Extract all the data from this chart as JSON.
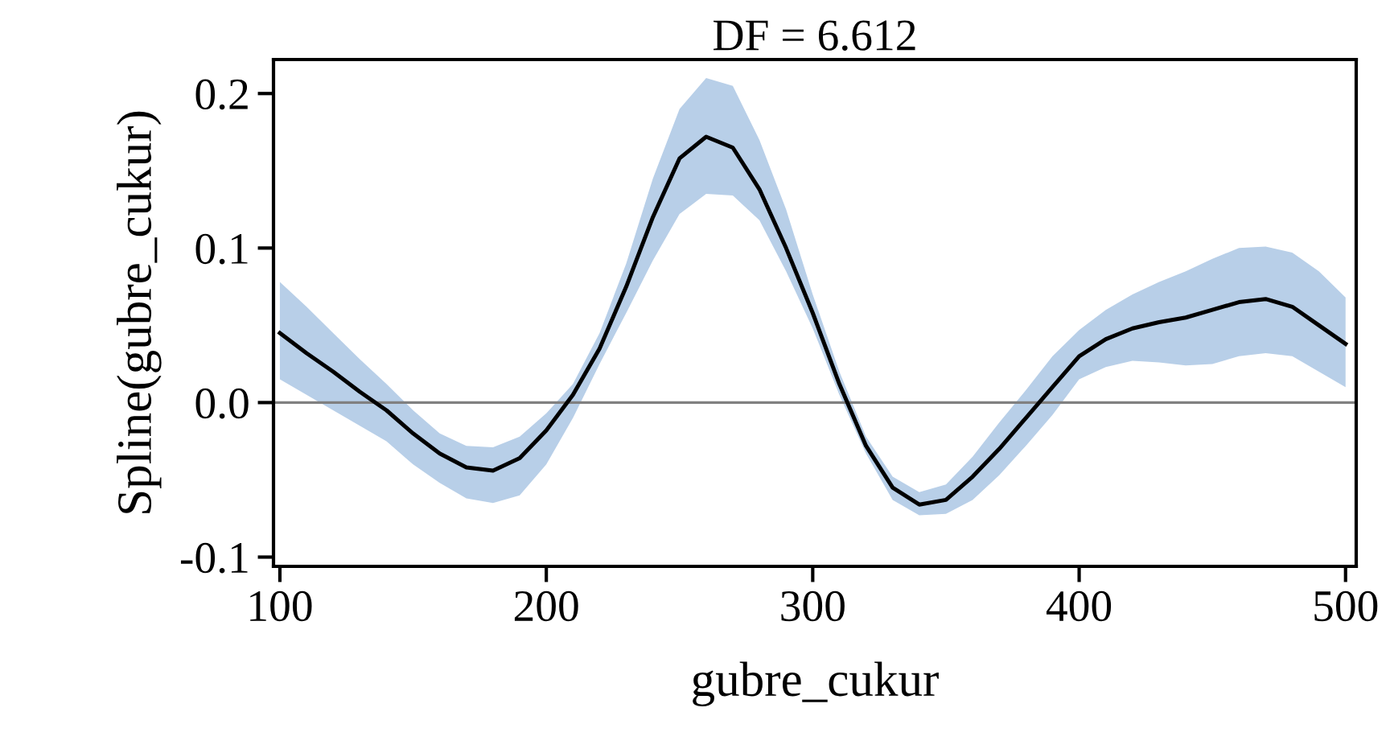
{
  "chart_data": {
    "type": "line",
    "title": "DF = 6.612",
    "xlabel": "gubre_cukur",
    "ylabel": "Spline(gubre_cukur)",
    "x": [
      100,
      110,
      120,
      130,
      140,
      150,
      160,
      170,
      180,
      190,
      200,
      210,
      220,
      230,
      240,
      250,
      260,
      270,
      280,
      290,
      300,
      310,
      320,
      330,
      340,
      350,
      360,
      370,
      380,
      390,
      400,
      410,
      420,
      430,
      440,
      450,
      460,
      470,
      480,
      490,
      500
    ],
    "series": [
      {
        "color": "#000000",
        "values": [
          0.045,
          0.032,
          0.02,
          0.007,
          -0.005,
          -0.02,
          -0.033,
          -0.042,
          -0.044,
          -0.036,
          -0.018,
          0.005,
          0.035,
          0.075,
          0.12,
          0.158,
          0.172,
          0.165,
          0.138,
          0.1,
          0.058,
          0.012,
          -0.028,
          -0.055,
          -0.066,
          -0.063,
          -0.048,
          -0.03,
          -0.01,
          0.01,
          0.03,
          0.041,
          0.048,
          0.052,
          0.055,
          0.06,
          0.065,
          0.067,
          0.062,
          0.05,
          0.038
        ],
        "lower": [
          0.015,
          0.005,
          -0.005,
          -0.015,
          -0.025,
          -0.04,
          -0.052,
          -0.062,
          -0.065,
          -0.06,
          -0.04,
          -0.01,
          0.025,
          0.058,
          0.092,
          0.122,
          0.135,
          0.134,
          0.118,
          0.085,
          0.048,
          0.005,
          -0.033,
          -0.063,
          -0.073,
          -0.072,
          -0.063,
          -0.047,
          -0.028,
          -0.008,
          0.015,
          0.023,
          0.027,
          0.026,
          0.024,
          0.025,
          0.03,
          0.032,
          0.03,
          0.02,
          0.01
        ],
        "upper": [
          0.078,
          0.062,
          0.045,
          0.028,
          0.012,
          -0.005,
          -0.02,
          -0.028,
          -0.029,
          -0.022,
          -0.007,
          0.012,
          0.045,
          0.09,
          0.145,
          0.19,
          0.21,
          0.205,
          0.17,
          0.125,
          0.07,
          0.02,
          -0.022,
          -0.048,
          -0.058,
          -0.053,
          -0.035,
          -0.013,
          0.008,
          0.03,
          0.047,
          0.06,
          0.07,
          0.078,
          0.085,
          0.093,
          0.1,
          0.101,
          0.097,
          0.085,
          0.068
        ]
      }
    ],
    "xlim": [
      97.6,
      504
    ],
    "ylim": [
      -0.106,
      0.222
    ],
    "xticks": [
      100,
      200,
      300,
      400,
      500
    ],
    "yticks": [
      {
        "value": -0.1,
        "label": "-0.1"
      },
      {
        "value": 0,
        "label": "0.0"
      },
      {
        "value": 0.1,
        "label": "0.1"
      },
      {
        "value": 0.2,
        "label": "0.2"
      }
    ],
    "ref_lines": [
      {
        "axis": "y",
        "value": 0,
        "color": "#808080"
      }
    ],
    "grid": false,
    "legend": false
  }
}
